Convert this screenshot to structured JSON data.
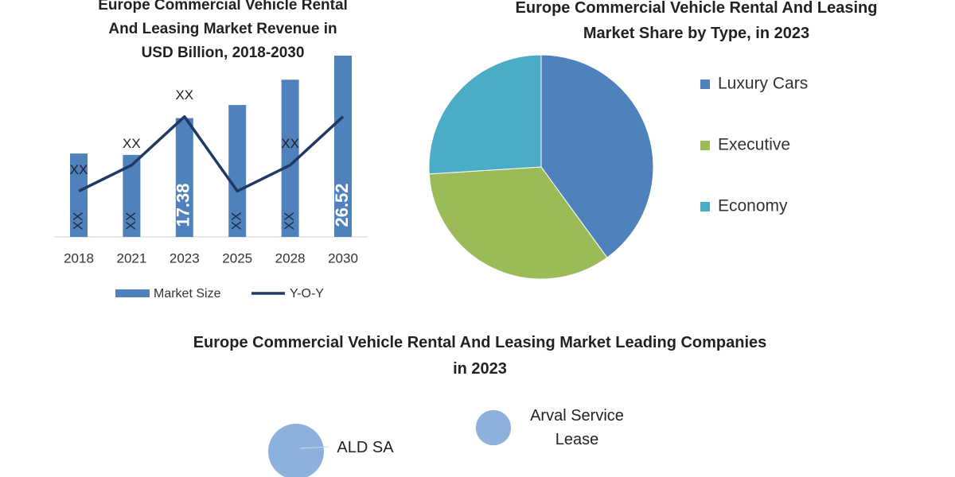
{
  "chart_data": [
    {
      "type": "bar-line",
      "title": "Europe Commercial Vehicle Rental And Leasing Market Revenue in USD Billion, 2018-2030",
      "categories": [
        "2018",
        "2021",
        "2023",
        "2025",
        "2028",
        "2030"
      ],
      "series": [
        {
          "name": "Market Size",
          "type": "bar",
          "color": "#4f81bd",
          "values": [
            12.2,
            12.0,
            17.38,
            19.3,
            23.0,
            26.52
          ],
          "value_labels": [
            "XX",
            "XX",
            "17.38",
            "XX",
            "XX",
            "26.52"
          ]
        },
        {
          "name": "Y-O-Y",
          "type": "line",
          "color": "#1f3864",
          "values": [
            6.7,
            10.5,
            17.6,
            6.7,
            10.5,
            17.6
          ],
          "value_labels": [
            "XX",
            "XX",
            "XX",
            null,
            "XX",
            null
          ]
        }
      ],
      "legend": "bottom"
    },
    {
      "type": "pie",
      "title": "Europe Commercial Vehicle Rental And Leasing Market Share by Type, in 2023",
      "categories": [
        "Luxury Cars",
        "Executive",
        "Economy"
      ],
      "values": [
        40,
        34,
        26
      ],
      "colors": [
        "#4f81bd",
        "#9bbb59",
        "#4bacc6"
      ],
      "legend": "right"
    },
    {
      "type": "bubble",
      "title": "Europe Commercial Vehicle Rental And Leasing Market Leading Companies in 2023",
      "categories": [
        "ALD SA",
        "Arval Service Lease"
      ],
      "values": [
        10,
        4
      ],
      "colors": [
        "#8eb0dd",
        "#8eb0dd"
      ]
    }
  ]
}
